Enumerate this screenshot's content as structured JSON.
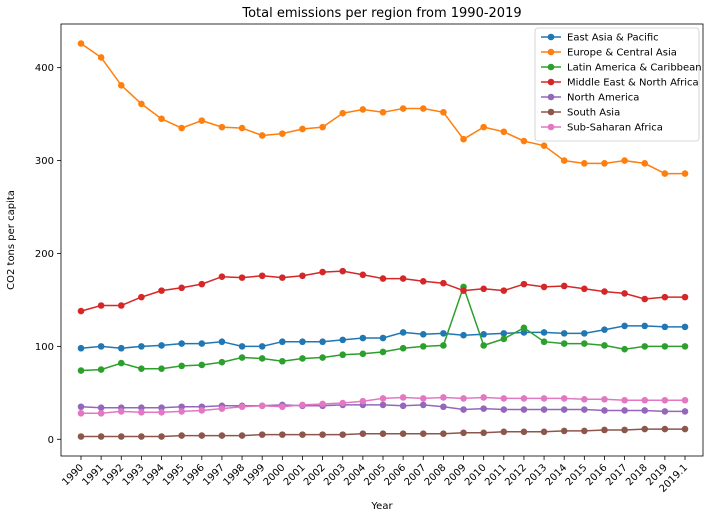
{
  "chart_data": {
    "type": "line",
    "title": "Total emissions per region from 1990-2019",
    "xlabel": "Year",
    "ylabel": "CO2 tons per capita",
    "categories": [
      "1990",
      "1991",
      "1992",
      "1993",
      "1994",
      "1995",
      "1996",
      "1997",
      "1998",
      "1999",
      "2000",
      "2001",
      "2002",
      "2003",
      "2004",
      "2005",
      "2006",
      "2007",
      "2008",
      "2009",
      "2010",
      "2011",
      "2012",
      "2013",
      "2014",
      "2015",
      "2016",
      "2017",
      "2018",
      "2019",
      "2019.1"
    ],
    "y_ticks": [
      0,
      100,
      200,
      300,
      400
    ],
    "ylim": [
      -18,
      447
    ],
    "grid": false,
    "legend_position": "top-right",
    "series": [
      {
        "name": "East Asia & Pacific",
        "color": "#1f77b4",
        "values": [
          98,
          100,
          98,
          100,
          101,
          103,
          103,
          105,
          100,
          100,
          105,
          105,
          105,
          107,
          109,
          109,
          115,
          113,
          114,
          112,
          113,
          114,
          115,
          115,
          114,
          114,
          118,
          122,
          122,
          121,
          121
        ]
      },
      {
        "name": "Europe & Central Asia",
        "color": "#ff7f0e",
        "values": [
          426,
          411,
          381,
          361,
          345,
          335,
          343,
          336,
          335,
          327,
          329,
          334,
          336,
          351,
          355,
          352,
          356,
          356,
          352,
          323,
          336,
          331,
          321,
          316,
          300,
          297,
          297,
          300,
          297,
          286,
          286
        ]
      },
      {
        "name": "Latin America & Caribbean",
        "color": "#2ca02c",
        "values": [
          74,
          75,
          82,
          76,
          76,
          79,
          80,
          83,
          88,
          87,
          84,
          87,
          88,
          91,
          92,
          94,
          98,
          100,
          101,
          164,
          101,
          108,
          120,
          105,
          103,
          103,
          101,
          97,
          100,
          100,
          100
        ]
      },
      {
        "name": "Middle East & North Africa",
        "color": "#d62728",
        "values": [
          138,
          144,
          144,
          153,
          160,
          163,
          167,
          175,
          174,
          176,
          174,
          176,
          180,
          181,
          177,
          173,
          173,
          170,
          168,
          160,
          162,
          160,
          167,
          164,
          165,
          162,
          159,
          157,
          151,
          153,
          153
        ]
      },
      {
        "name": "North America",
        "color": "#9467bd",
        "values": [
          35,
          34,
          34,
          34,
          34,
          35,
          35,
          36,
          36,
          36,
          37,
          36,
          36,
          37,
          37,
          37,
          36,
          37,
          35,
          32,
          33,
          32,
          32,
          32,
          32,
          32,
          31,
          31,
          31,
          30,
          30
        ]
      },
      {
        "name": "South Asia",
        "color": "#8c564b",
        "values": [
          3,
          3,
          3,
          3,
          3,
          4,
          4,
          4,
          4,
          5,
          5,
          5,
          5,
          5,
          6,
          6,
          6,
          6,
          6,
          7,
          7,
          8,
          8,
          8,
          9,
          9,
          10,
          10,
          11,
          11,
          11
        ]
      },
      {
        "name": "Sub-Saharan Africa",
        "color": "#e377c2",
        "values": [
          28,
          28,
          30,
          29,
          29,
          30,
          31,
          33,
          35,
          36,
          35,
          37,
          38,
          39,
          41,
          44,
          45,
          44,
          45,
          44,
          45,
          44,
          44,
          44,
          44,
          43,
          43,
          42,
          42,
          42,
          42
        ]
      }
    ]
  }
}
